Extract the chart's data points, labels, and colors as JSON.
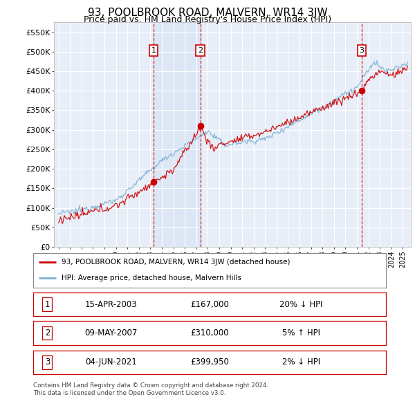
{
  "title": "93, POOLBROOK ROAD, MALVERN, WR14 3JW",
  "subtitle": "Price paid vs. HM Land Registry's House Price Index (HPI)",
  "ylabel_ticks": [
    "£0",
    "£50K",
    "£100K",
    "£150K",
    "£200K",
    "£250K",
    "£300K",
    "£350K",
    "£400K",
    "£450K",
    "£500K",
    "£550K"
  ],
  "ylim": [
    0,
    575000
  ],
  "sale_dates": [
    2003.29,
    2007.36,
    2021.43
  ],
  "sale_prices": [
    167000,
    310000,
    399950
  ],
  "sale_labels": [
    "1",
    "2",
    "3"
  ],
  "legend_red": "93, POOLBROOK ROAD, MALVERN, WR14 3JW (detached house)",
  "legend_blue": "HPI: Average price, detached house, Malvern Hills",
  "table_rows": [
    [
      "1",
      "15-APR-2003",
      "£167,000",
      "20% ↓ HPI"
    ],
    [
      "2",
      "09-MAY-2007",
      "£310,000",
      "5% ↑ HPI"
    ],
    [
      "3",
      "04-JUN-2021",
      "£399,950",
      "2% ↓ HPI"
    ]
  ],
  "footer1": "Contains HM Land Registry data © Crown copyright and database right 2024.",
  "footer2": "This data is licensed under the Open Government Licence v3.0.",
  "bg_color": "#e8eef8",
  "grid_color": "#ffffff",
  "red_color": "#cc0000",
  "blue_color": "#7ab0d4",
  "dashed_color": "#cc0000",
  "shade_color": "#c8d8f0",
  "title_fontsize": 11,
  "subtitle_fontsize": 9
}
